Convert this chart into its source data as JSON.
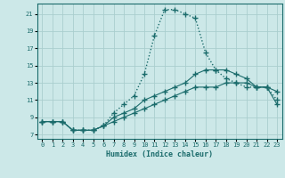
{
  "xlabel": "Humidex (Indice chaleur)",
  "bg_color": "#cce8e8",
  "grid_color": "#aacece",
  "line_color": "#1a6b6b",
  "xlim": [
    -0.5,
    23.5
  ],
  "ylim": [
    6.5,
    22.2
  ],
  "xticks": [
    0,
    1,
    2,
    3,
    4,
    5,
    6,
    7,
    8,
    9,
    10,
    11,
    12,
    13,
    14,
    15,
    16,
    17,
    18,
    19,
    20,
    21,
    22,
    23
  ],
  "yticks": [
    7,
    9,
    11,
    13,
    15,
    17,
    19,
    21
  ],
  "series1_x": [
    0,
    1,
    2,
    3,
    4,
    5,
    6,
    7,
    8,
    9,
    10,
    11,
    12,
    13,
    14,
    15,
    16,
    17,
    18,
    19,
    20,
    21,
    22,
    23
  ],
  "series1_y": [
    8.5,
    8.5,
    8.5,
    7.5,
    7.5,
    7.5,
    8.0,
    9.5,
    10.5,
    11.5,
    14.0,
    18.5,
    21.5,
    21.5,
    21.0,
    20.5,
    16.5,
    14.5,
    13.5,
    13.0,
    12.5,
    12.5,
    12.5,
    11.0
  ],
  "series2_x": [
    0,
    1,
    2,
    3,
    4,
    5,
    6,
    7,
    8,
    9,
    10,
    11,
    12,
    13,
    14,
    15,
    16,
    17,
    18,
    19,
    20,
    21,
    22,
    23
  ],
  "series2_y": [
    8.5,
    8.5,
    8.5,
    7.5,
    7.5,
    7.5,
    8.0,
    9.0,
    9.5,
    10.0,
    11.0,
    11.5,
    12.0,
    12.5,
    13.0,
    14.0,
    14.5,
    14.5,
    14.5,
    14.0,
    13.5,
    12.5,
    12.5,
    12.0
  ],
  "series3_x": [
    0,
    1,
    2,
    3,
    4,
    5,
    6,
    7,
    8,
    9,
    10,
    11,
    12,
    13,
    14,
    15,
    16,
    17,
    18,
    19,
    20,
    21,
    22,
    23
  ],
  "series3_y": [
    8.5,
    8.5,
    8.5,
    7.5,
    7.5,
    7.5,
    8.0,
    8.5,
    9.0,
    9.5,
    10.0,
    10.5,
    11.0,
    11.5,
    12.0,
    12.5,
    12.5,
    12.5,
    13.0,
    13.0,
    13.0,
    12.5,
    12.5,
    10.5
  ]
}
